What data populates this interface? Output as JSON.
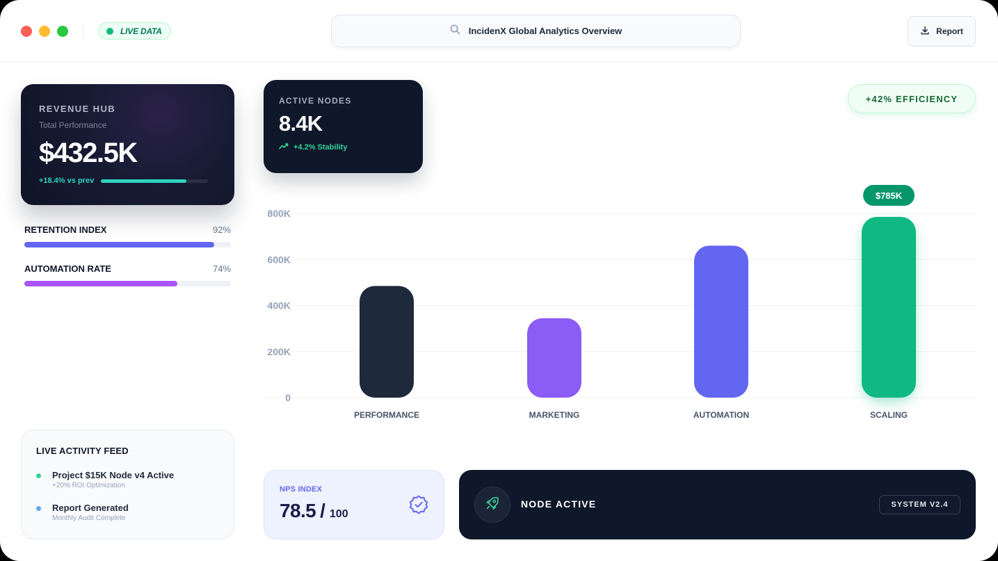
{
  "header": {
    "live_label": "LIVE DATA",
    "search_title": "IncidenX Global Analytics Overview",
    "report_label": "Report"
  },
  "revenue": {
    "kicker": "REVENUE HUB",
    "subtitle": "Total Performance",
    "value": "$432.5K",
    "trend": "+18.4% vs prev",
    "progress": 0.8
  },
  "metrics": [
    {
      "name": "RETENTION INDEX",
      "value": "92%",
      "fraction": 0.92,
      "color": "#6366f1"
    },
    {
      "name": "AUTOMATION RATE",
      "value": "74%",
      "fraction": 0.74,
      "color": "#a855f7"
    }
  ],
  "feed": {
    "title": "LIVE ACTIVITY FEED",
    "items": [
      {
        "title": "Project $15K Node v4 Active",
        "subtitle": "+20% ROI Optimization",
        "color": "#34d399"
      },
      {
        "title": "Report Generated",
        "subtitle": "Monthly Audit Complete",
        "color": "#60a5fa"
      }
    ]
  },
  "nodes": {
    "kicker": "ACTIVE NODES",
    "value": "8.4K",
    "trend": "+4.2% Stability"
  },
  "efficiency_badge": "+42% EFFICIENCY",
  "chart_data": {
    "type": "bar",
    "categories": [
      "PERFORMANCE",
      "MARKETING",
      "AUTOMATION",
      "SCALING"
    ],
    "values": [
      485,
      345,
      660,
      785
    ],
    "colors": [
      "#1e293b",
      "#8b5cf6",
      "#6366f1",
      "#10b981"
    ],
    "ylim": [
      0,
      800
    ],
    "yticks": [
      0,
      200,
      400,
      600,
      800
    ],
    "ytick_labels": [
      "0",
      "200K",
      "400K",
      "600K",
      "800K"
    ],
    "highlight_label": "$785K",
    "grid": true
  },
  "nps": {
    "kicker": "NPS INDEX",
    "value": "78.5",
    "slash": "/",
    "max": "100"
  },
  "node_status": {
    "label": "NODE ACTIVE",
    "version": "SYSTEM V2.4"
  },
  "icons": {
    "search": "search-icon",
    "report": "download-icon",
    "trend": "trending-up-icon",
    "nps": "verified-badge-icon",
    "node": "rocket-icon"
  }
}
